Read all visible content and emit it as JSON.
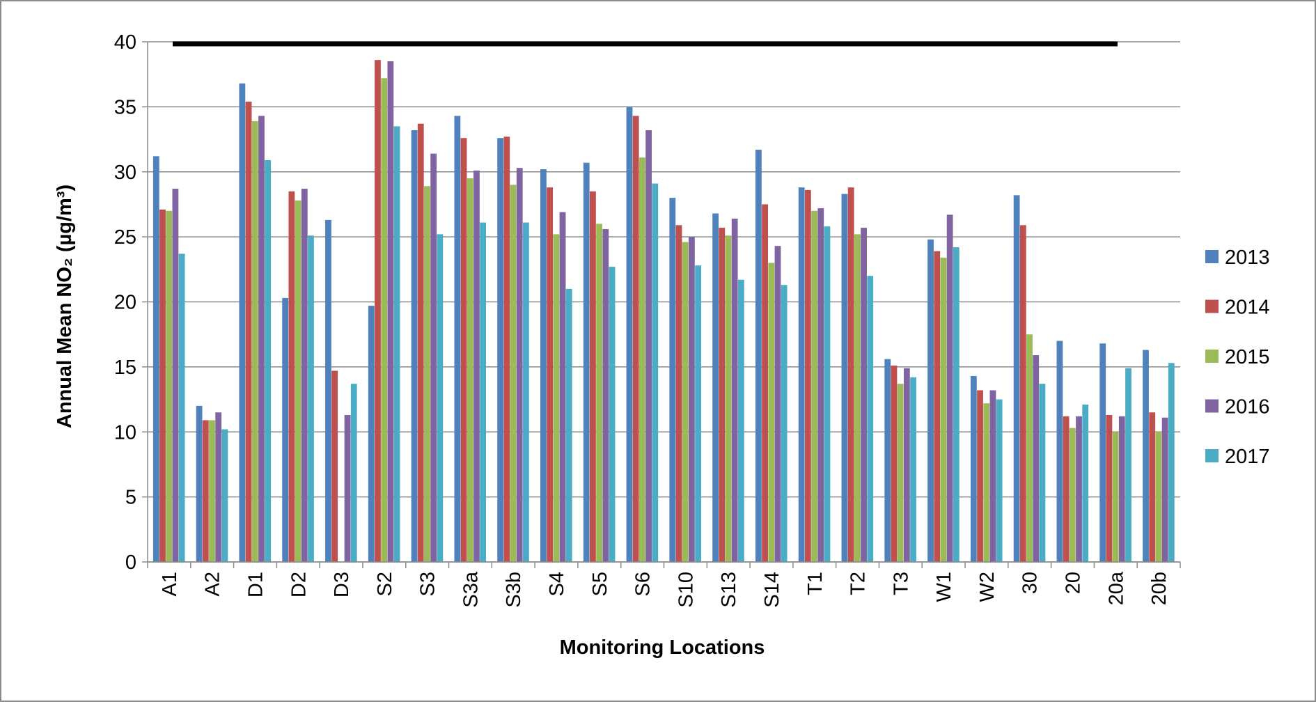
{
  "chart_data": {
    "type": "bar",
    "title": "",
    "xlabel": "Monitoring Locations",
    "ylabel": "Annual Mean NO₂ (µg/m³)",
    "ylim": [
      0,
      40
    ],
    "yticks": [
      "0",
      "5",
      "10",
      "15",
      "20",
      "25",
      "30",
      "35",
      "40"
    ],
    "grid": true,
    "legend_position": "right",
    "reference_line": {
      "y": 40,
      "color": "#000000"
    },
    "categories": [
      "A1",
      "A2",
      "D1",
      "D2",
      "D3",
      "S2",
      "S3",
      "S3a",
      "S3b",
      "S4",
      "S5",
      "S6",
      "S10",
      "S13",
      "S14",
      "T1",
      "T2",
      "T3",
      "W1",
      "W2",
      "30",
      "20",
      "20a",
      "20b"
    ],
    "series": [
      {
        "name": "2013",
        "color": "#4f81bd",
        "values": [
          31.2,
          12.0,
          36.8,
          20.3,
          26.3,
          19.7,
          33.2,
          34.3,
          32.6,
          30.2,
          30.7,
          35.0,
          28.0,
          26.8,
          31.7,
          28.8,
          28.3,
          15.6,
          24.8,
          14.3,
          28.2,
          17.0,
          16.8,
          16.3
        ]
      },
      {
        "name": "2014",
        "color": "#c0504d",
        "values": [
          27.1,
          10.9,
          35.4,
          28.5,
          14.7,
          38.6,
          33.7,
          32.6,
          32.7,
          28.8,
          28.5,
          34.3,
          25.9,
          25.7,
          27.5,
          28.6,
          28.8,
          15.1,
          23.9,
          13.2,
          25.9,
          11.2,
          11.3,
          11.5
        ]
      },
      {
        "name": "2015",
        "color": "#9bbb59",
        "values": [
          27.0,
          10.9,
          33.9,
          27.8,
          null,
          37.2,
          28.9,
          29.5,
          29.0,
          25.2,
          26.0,
          31.1,
          24.6,
          25.1,
          23.0,
          27.0,
          25.2,
          13.7,
          23.4,
          12.2,
          17.5,
          10.3,
          10.0,
          10.0
        ]
      },
      {
        "name": "2016",
        "color": "#8064a2",
        "values": [
          28.7,
          11.5,
          34.3,
          28.7,
          11.3,
          38.5,
          31.4,
          30.1,
          30.3,
          26.9,
          25.6,
          33.2,
          25.0,
          26.4,
          24.3,
          27.2,
          25.7,
          14.9,
          26.7,
          13.2,
          15.9,
          11.2,
          11.2,
          11.1
        ]
      },
      {
        "name": "2017",
        "color": "#4bacc6",
        "values": [
          23.7,
          10.2,
          30.9,
          25.1,
          13.7,
          33.5,
          25.2,
          26.1,
          26.1,
          21.0,
          22.7,
          29.1,
          22.8,
          21.7,
          21.3,
          25.8,
          22.0,
          14.2,
          24.2,
          12.5,
          13.7,
          12.1,
          14.9,
          15.3
        ]
      }
    ]
  }
}
